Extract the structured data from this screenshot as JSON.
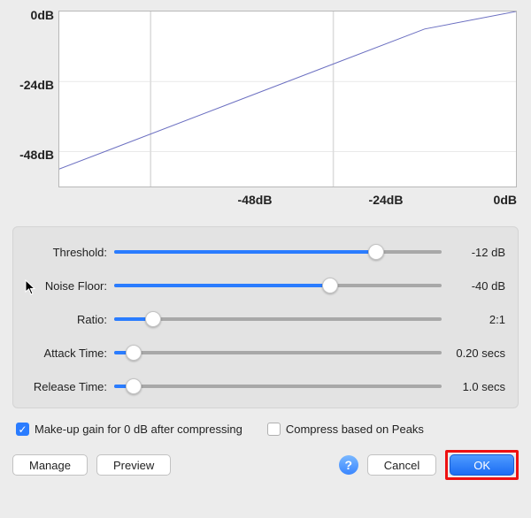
{
  "chart": {
    "type": "line",
    "y_ticks": [
      "0dB",
      "-24dB",
      "-48dB"
    ],
    "x_ticks": [
      "-48dB",
      "-24dB",
      "0dB"
    ],
    "x_range": [
      -60,
      0
    ],
    "y_range": [
      -60,
      0
    ],
    "line_color": "#6b6fc1",
    "line_width": 2,
    "grid_color": "#dcdcdc",
    "background_color": "#ffffff",
    "points": [
      {
        "x": -60,
        "y": -54
      },
      {
        "x": -12,
        "y": -6
      },
      {
        "x": 0,
        "y": 0
      }
    ]
  },
  "sliders": [
    {
      "label": "Threshold:",
      "value_text": "-12 dB",
      "percent": 80
    },
    {
      "label": "Noise Floor:",
      "value_text": "-40 dB",
      "percent": 66
    },
    {
      "label": "Ratio:",
      "value_text": "2:1",
      "percent": 12
    },
    {
      "label": "Attack Time:",
      "value_text": "0.20 secs",
      "percent": 6
    },
    {
      "label": "Release Time:",
      "value_text": "1.0 secs",
      "percent": 6
    }
  ],
  "checkboxes": {
    "makeup_gain": {
      "label": "Make-up gain for 0 dB after compressing",
      "checked": true
    },
    "peaks": {
      "label": "Compress based on Peaks",
      "checked": false
    }
  },
  "buttons": {
    "manage": "Manage",
    "preview": "Preview",
    "help": "?",
    "cancel": "Cancel",
    "ok": "OK"
  },
  "colors": {
    "accent": "#2a7cff",
    "panel_bg": "#e3e3e3",
    "body_bg": "#ececec",
    "highlight_border": "#e11"
  }
}
